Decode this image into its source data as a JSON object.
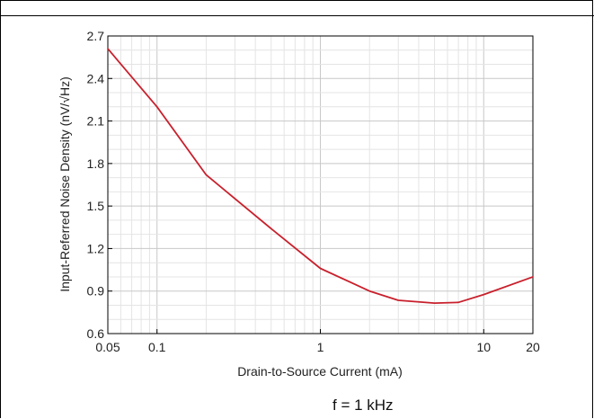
{
  "chart_data": {
    "type": "line",
    "xlabel": "Drain-to-Source Current (mA)",
    "ylabel": "Input-Referred Noise Density (nV/√Hz)",
    "xscale": "log",
    "xlim": [
      0.05,
      20
    ],
    "ylim": [
      0.6,
      2.7
    ],
    "xticks": [
      0.05,
      0.1,
      1,
      10,
      20
    ],
    "xtick_labels": [
      "0.05",
      "0.1",
      "1",
      "10",
      "20"
    ],
    "yticks": [
      0.6,
      0.9,
      1.2,
      1.5,
      1.8,
      2.1,
      2.4,
      2.7
    ],
    "ytick_labels": [
      "0.6",
      "0.9",
      "1.2",
      "1.5",
      "1.8",
      "2.1",
      "2.4",
      "2.7"
    ],
    "grid": true,
    "series": [
      {
        "color": "#c8202c",
        "x": [
          0.05,
          0.1,
          0.2,
          0.5,
          1,
          2,
          3,
          5,
          7,
          10,
          20
        ],
        "y": [
          2.61,
          2.2,
          1.72,
          1.34,
          1.06,
          0.9,
          0.835,
          0.815,
          0.82,
          0.875,
          1.0
        ]
      }
    ]
  },
  "caption": "f = 1 kHz"
}
